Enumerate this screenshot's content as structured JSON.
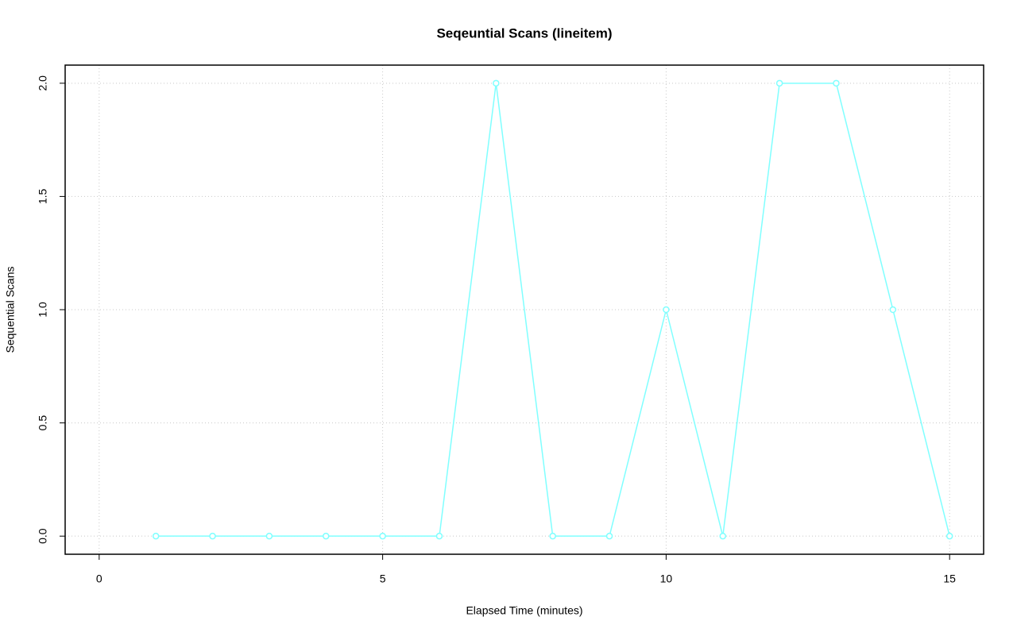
{
  "chart_data": {
    "type": "line",
    "title": "Seqeuntial Scans (lineitem)",
    "x_label": "Elapsed Time (minutes)",
    "y_label": "Sequential Scans",
    "x": [
      1,
      2,
      3,
      4,
      5,
      6,
      7,
      8,
      9,
      10,
      11,
      12,
      13,
      14,
      15
    ],
    "series": [
      {
        "color": "#80ffff",
        "values": [
          0,
          0,
          0,
          0,
          0,
          0,
          2,
          0,
          0,
          1,
          0,
          2,
          2,
          1,
          0
        ]
      }
    ],
    "xlim": [
      -0.6,
      15.6
    ],
    "xticks": [
      0,
      5,
      10,
      15
    ],
    "ylim": [
      -0.08,
      2.08
    ],
    "yticks": [
      {
        "value": 0,
        "label": "0.0"
      },
      {
        "value": 0.5,
        "label": "0.5"
      },
      {
        "value": 1,
        "label": "1.0"
      },
      {
        "value": 1.5,
        "label": "1.5"
      },
      {
        "value": 2,
        "label": "2.0"
      }
    ],
    "grid": true
  }
}
